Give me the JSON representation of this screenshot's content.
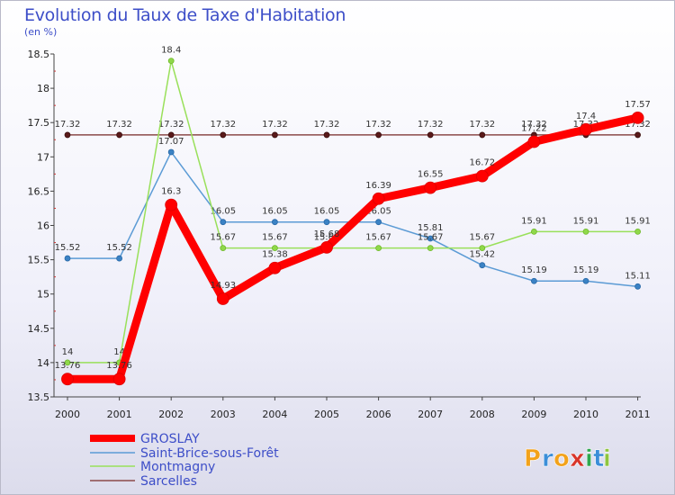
{
  "chart_data": {
    "type": "line",
    "title": "Evolution du Taux de Taxe d'Habitation",
    "subtitle": "(en %)",
    "xlabel": "",
    "ylabel": "",
    "categories": [
      "2000",
      "2001",
      "2002",
      "2003",
      "2004",
      "2005",
      "2006",
      "2007",
      "2008",
      "2009",
      "2010",
      "2011"
    ],
    "ylim": [
      13.5,
      18.5
    ],
    "yticks": [
      "13.5",
      "14",
      "14.5",
      "15",
      "15.5",
      "16",
      "16.5",
      "17",
      "17.5",
      "18",
      "18.5"
    ],
    "series": [
      {
        "name": "GROSLAY",
        "color": "#ff0000",
        "values": [
          13.76,
          13.76,
          16.3,
          14.93,
          15.38,
          15.68,
          16.39,
          16.55,
          16.72,
          17.22,
          17.4,
          17.57
        ],
        "labels": [
          "13.76",
          "13.76",
          "16.3",
          "14.93",
          "15.38",
          "15.68",
          "16.39",
          "16.55",
          "16.72",
          "17.22",
          "17.4",
          "17.57"
        ]
      },
      {
        "name": "Saint-Brice-sous-Forêt",
        "color": "#5b9bd5",
        "values": [
          15.52,
          15.52,
          17.07,
          16.05,
          16.05,
          16.05,
          16.05,
          15.81,
          15.42,
          15.19,
          15.19,
          15.11
        ],
        "labels": [
          "15.52",
          "15.52",
          "17.07",
          "16.05",
          "16.05",
          "16.05",
          "16.05",
          "15.81",
          "15.42",
          "15.19",
          "15.19",
          "15.11"
        ]
      },
      {
        "name": "Montmagny",
        "color": "#99e05a",
        "values": [
          14,
          14,
          18.4,
          15.67,
          15.67,
          15.67,
          15.67,
          15.67,
          15.67,
          15.91,
          15.91,
          15.91
        ],
        "labels": [
          "14",
          "14",
          "18.4",
          "15.67",
          "15.67",
          "15.67",
          "15.67",
          "15.67",
          "15.67",
          "15.91",
          "15.91",
          "15.91"
        ]
      },
      {
        "name": "Sarcelles",
        "color": "#8b4a4a",
        "values": [
          17.32,
          17.32,
          17.32,
          17.32,
          17.32,
          17.32,
          17.32,
          17.32,
          17.32,
          17.32,
          17.32,
          17.32
        ],
        "labels": [
          "17.32",
          "17.32",
          "17.32",
          "17.32",
          "17.32",
          "17.32",
          "17.32",
          "17.32",
          "17.32",
          "17.32",
          "17.32",
          "17.32"
        ]
      }
    ],
    "legend_position": "bottom-left"
  },
  "branding": {
    "logo_letters": [
      "P",
      "r",
      "o",
      "x",
      "i",
      "t",
      "i"
    ],
    "logo_colors": [
      "#f2a21b",
      "#3b8ed8",
      "#f2a21b",
      "#d8352a",
      "#2fa84f",
      "#3b8ed8",
      "#8fc53f"
    ]
  }
}
